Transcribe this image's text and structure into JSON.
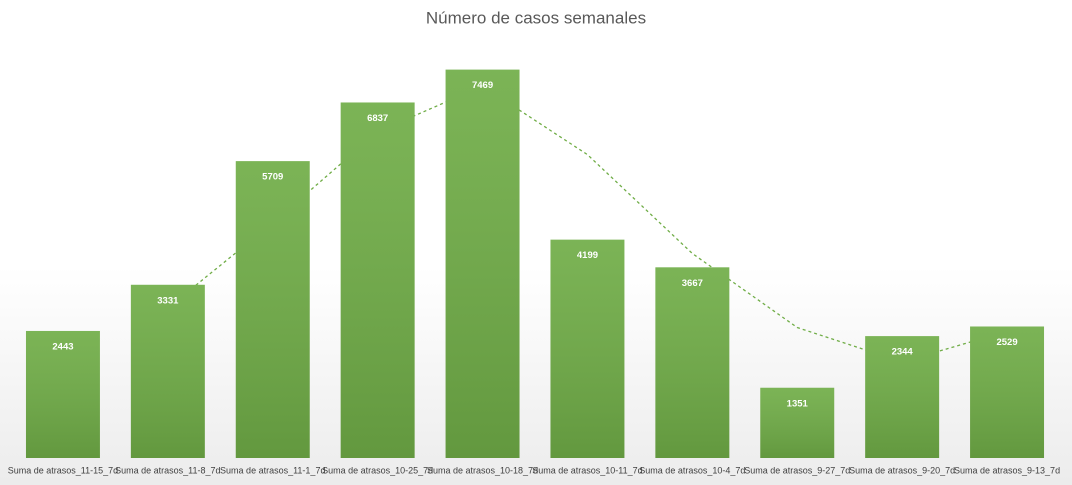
{
  "chart_data": {
    "type": "bar",
    "title": "Número de casos semanales",
    "categories": [
      "Suma de atrasos_11-15_7d",
      "Suma de atrasos_11-8_7d",
      "Suma de atrasos_11-1_7d",
      "Suma de atrasos_10-25_7d",
      "Suma de atrasos_10-18_7d",
      "Suma de atrasos_10-11_7d",
      "Suma de atrasos_10-4_7d",
      "Suma de atrasos_9-27_7d",
      "Suma de atrasos_9-20_7d",
      "Suma de atrasos_9-13_7d"
    ],
    "values": [
      2443,
      3331,
      5709,
      6837,
      7469,
      4199,
      3667,
      1351,
      2344,
      2529
    ],
    "color": "#70ad47",
    "ylim": [
      0,
      8000
    ],
    "grid": false,
    "trendline": {
      "period": 2,
      "color": "#70ad47"
    }
  }
}
